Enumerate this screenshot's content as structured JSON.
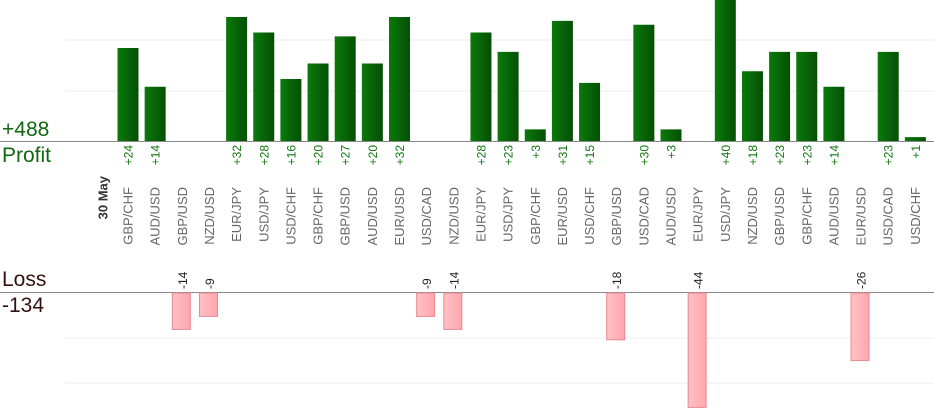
{
  "summary": {
    "profit_total": "+488",
    "profit_label": "Profit",
    "loss_label": "Loss",
    "loss_total": "-134"
  },
  "colors": {
    "profit_bar": "#0c6a0c",
    "profit_text": "#117711",
    "loss_bar": "#ffb3b8",
    "loss_bar_border": "#e88890",
    "loss_text": "#222222",
    "grid": "#eeeeee",
    "axis": "#888888",
    "pair_text": "#666666"
  },
  "chart_data": {
    "type": "bar",
    "date_label": "30 May",
    "grid": true,
    "categories": [
      "GBP/CHF",
      "AUD/USD",
      "GBP/USD",
      "NZD/USD",
      "EUR/JPY",
      "USD/JPY",
      "USD/CHF",
      "GBP/CHF",
      "GBP/USD",
      "AUD/USD",
      "EUR/USD",
      "USD/CAD",
      "NZD/USD",
      "EUR/JPY",
      "USD/JPY",
      "GBP/CHF",
      "EUR/USD",
      "USD/CHF",
      "GBP/USD",
      "USD/CAD",
      "AUD/USD",
      "EUR/JPY",
      "USD/JPY",
      "NZD/USD",
      "GBP/USD",
      "GBP/CHF",
      "AUD/USD",
      "EUR/USD",
      "USD/CAD",
      "USD/CHF"
    ],
    "values": [
      24,
      14,
      -14,
      -9,
      32,
      28,
      16,
      20,
      27,
      20,
      32,
      -9,
      -14,
      28,
      23,
      3,
      31,
      15,
      -18,
      30,
      3,
      -44,
      40,
      18,
      23,
      23,
      14,
      -26,
      23,
      1
    ],
    "value_labels": [
      "+24",
      "+14",
      "-14",
      "-9",
      "+32",
      "+28",
      "+16",
      "+20",
      "+27",
      "+20",
      "+32",
      "-9",
      "-14",
      "+28",
      "+23",
      "+3",
      "+31",
      "+15",
      "-18",
      "+30",
      "+3",
      "-44",
      "+40",
      "+18",
      "+23",
      "+23",
      "+14",
      "-26",
      "+23",
      "+1"
    ],
    "series": [
      {
        "values": [
          24,
          14,
          null,
          null,
          32,
          28,
          16,
          20,
          27,
          20,
          32,
          null,
          null,
          28,
          23,
          3,
          31,
          15,
          null,
          30,
          3,
          null,
          40,
          18,
          23,
          23,
          14,
          null,
          23,
          1
        ]
      },
      {
        "values": [
          null,
          null,
          -14,
          -9,
          null,
          null,
          null,
          null,
          null,
          null,
          null,
          -9,
          -14,
          null,
          null,
          null,
          null,
          null,
          -18,
          null,
          null,
          -44,
          null,
          null,
          null,
          null,
          null,
          -26,
          null,
          null
        ]
      }
    ]
  }
}
